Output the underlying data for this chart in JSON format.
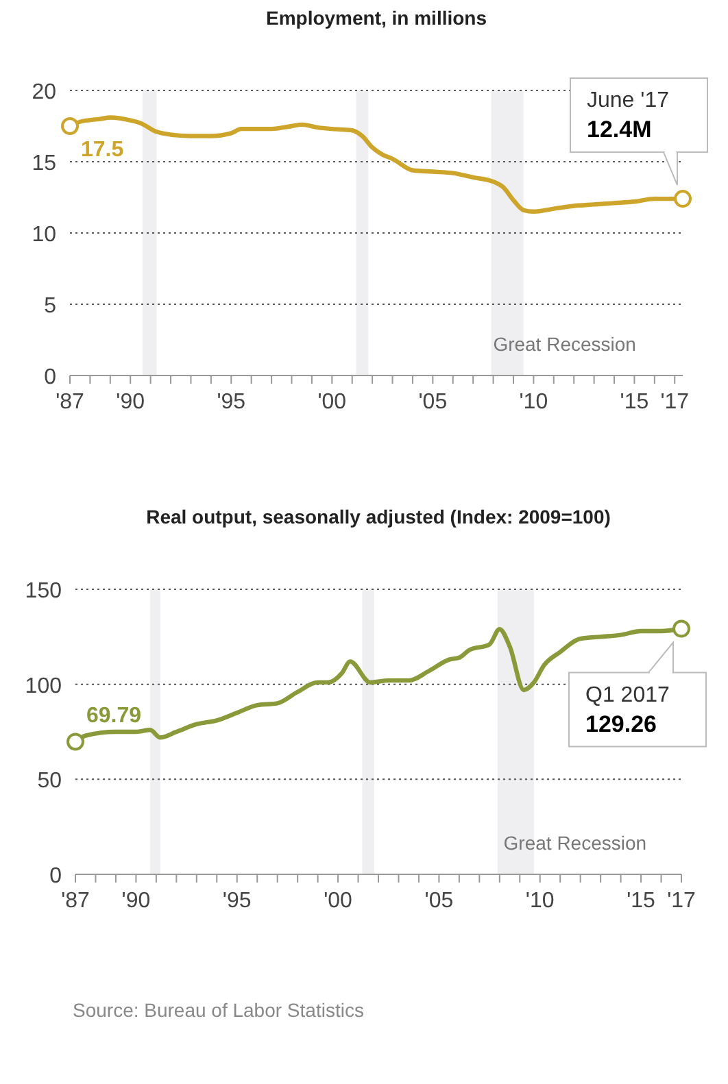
{
  "chart_data": [
    {
      "type": "line",
      "title": "Employment, in millions",
      "xlim": [
        1987,
        2017.4
      ],
      "xticks": [
        {
          "value": 1987,
          "label": "'87"
        },
        {
          "value": 1988,
          "label": null
        },
        {
          "value": 1989,
          "label": null
        },
        {
          "value": 1990,
          "label": "'90"
        },
        {
          "value": 1991,
          "label": null
        },
        {
          "value": 1992,
          "label": null
        },
        {
          "value": 1993,
          "label": null
        },
        {
          "value": 1994,
          "label": null
        },
        {
          "value": 1995,
          "label": "'95"
        },
        {
          "value": 1996,
          "label": null
        },
        {
          "value": 1997,
          "label": null
        },
        {
          "value": 1998,
          "label": null
        },
        {
          "value": 1999,
          "label": null
        },
        {
          "value": 2000,
          "label": "'00"
        },
        {
          "value": 2001,
          "label": null
        },
        {
          "value": 2002,
          "label": null
        },
        {
          "value": 2003,
          "label": null
        },
        {
          "value": 2004,
          "label": null
        },
        {
          "value": 2005,
          "label": "'05"
        },
        {
          "value": 2006,
          "label": null
        },
        {
          "value": 2007,
          "label": null
        },
        {
          "value": 2008,
          "label": null
        },
        {
          "value": 2009,
          "label": null
        },
        {
          "value": 2010,
          "label": "'10"
        },
        {
          "value": 2011,
          "label": null
        },
        {
          "value": 2012,
          "label": null
        },
        {
          "value": 2013,
          "label": null
        },
        {
          "value": 2014,
          "label": null
        },
        {
          "value": 2015,
          "label": "'15"
        },
        {
          "value": 2016,
          "label": null
        },
        {
          "value": 2017,
          "label": "'17"
        }
      ],
      "ylim": [
        0,
        20
      ],
      "yticks": [
        0,
        5,
        10,
        15,
        20
      ],
      "grid": "y",
      "marker": "none",
      "line_style": "solid",
      "series": [
        {
          "color": "#cda52b",
          "x": [
            1987,
            1987.5,
            1988.5,
            1989,
            1990,
            1990.5,
            1991.3,
            1992,
            1993,
            1994,
            1995,
            1995.5,
            1997,
            1998,
            1998.5,
            1999.3,
            2000,
            2001,
            2001.5,
            2002,
            2002.5,
            2003,
            2004,
            2005,
            2006,
            2007,
            2008,
            2008.5,
            2009,
            2009.5,
            2010,
            2011,
            2012,
            2013,
            2014,
            2015,
            2016,
            2016.7,
            2017.4
          ],
          "values": [
            17.5,
            17.8,
            18.0,
            18.1,
            17.9,
            17.7,
            17.1,
            16.9,
            16.8,
            16.8,
            17.0,
            17.3,
            17.3,
            17.5,
            17.6,
            17.4,
            17.3,
            17.2,
            16.8,
            16.0,
            15.5,
            15.2,
            14.4,
            14.3,
            14.2,
            13.9,
            13.6,
            13.2,
            12.3,
            11.6,
            11.5,
            11.7,
            11.9,
            12.0,
            12.1,
            12.2,
            12.4,
            12.4,
            12.4
          ]
        }
      ],
      "bands": [
        {
          "axis": "x",
          "from": 1990.6,
          "to": 1991.3,
          "color": "#efeff1"
        },
        {
          "axis": "x",
          "from": 2001.2,
          "to": 2001.8,
          "color": "#efeff1"
        },
        {
          "axis": "x",
          "from": 2007.9,
          "to": 2009.5,
          "label": "Great Recession",
          "color": "#efeff1"
        }
      ],
      "annotations": [
        {
          "text": "17.5",
          "x": 1987,
          "y": 17.5
        },
        "June '17",
        "12.4M"
      ]
    },
    {
      "type": "line",
      "title": "Real output, seasonally adjusted (Index: 2009=100)",
      "xlim": [
        1987,
        2017
      ],
      "xticks": [
        {
          "value": 1987,
          "label": "'87"
        },
        {
          "value": 1988,
          "label": null
        },
        {
          "value": 1989,
          "label": null
        },
        {
          "value": 1990,
          "label": "'90"
        },
        {
          "value": 1991,
          "label": null
        },
        {
          "value": 1992,
          "label": null
        },
        {
          "value": 1993,
          "label": null
        },
        {
          "value": 1994,
          "label": null
        },
        {
          "value": 1995,
          "label": "'95"
        },
        {
          "value": 1996,
          "label": null
        },
        {
          "value": 1997,
          "label": null
        },
        {
          "value": 1998,
          "label": null
        },
        {
          "value": 1999,
          "label": null
        },
        {
          "value": 2000,
          "label": "'00"
        },
        {
          "value": 2001,
          "label": null
        },
        {
          "value": 2002,
          "label": null
        },
        {
          "value": 2003,
          "label": null
        },
        {
          "value": 2004,
          "label": null
        },
        {
          "value": 2005,
          "label": "'05"
        },
        {
          "value": 2006,
          "label": null
        },
        {
          "value": 2007,
          "label": null
        },
        {
          "value": 2008,
          "label": null
        },
        {
          "value": 2009,
          "label": null
        },
        {
          "value": 2010,
          "label": "'10"
        },
        {
          "value": 2011,
          "label": null
        },
        {
          "value": 2012,
          "label": null
        },
        {
          "value": 2013,
          "label": null
        },
        {
          "value": 2014,
          "label": null
        },
        {
          "value": 2015,
          "label": "'15"
        },
        {
          "value": 2016,
          "label": null
        },
        {
          "value": 2017,
          "label": "'17"
        }
      ],
      "ylim": [
        0,
        150
      ],
      "yticks": [
        0,
        50,
        100,
        150
      ],
      "grid": "y",
      "marker": "none",
      "line_style": "solid",
      "series": [
        {
          "color": "#8a9a3a",
          "x": [
            1987,
            1987.5,
            1989,
            1990,
            1990.7,
            1991.2,
            1992,
            1993,
            1994,
            1995,
            1996,
            1997,
            1998,
            1999,
            1999.5,
            2000.2,
            2000.6,
            2001.6,
            2002.5,
            2003.5,
            2004.5,
            2005.5,
            2006,
            2006.5,
            2007.5,
            2008,
            2008.5,
            2009.2,
            2009.7,
            2010.2,
            2011,
            2012,
            2013,
            2014,
            2015,
            2016,
            2017
          ],
          "values": [
            69.79,
            73,
            75,
            75,
            76,
            72,
            75,
            79,
            81,
            85,
            89,
            90,
            96,
            101,
            101,
            106,
            112,
            101,
            102,
            102,
            107,
            113,
            114,
            118,
            121,
            129,
            120,
            97,
            101,
            110,
            117,
            124,
            125,
            126,
            128,
            128,
            129.26
          ]
        }
      ],
      "bands": [
        {
          "axis": "x",
          "from": 1990.7,
          "to": 1991.2,
          "color": "#efeff1"
        },
        {
          "axis": "x",
          "from": 2001.2,
          "to": 2001.8,
          "color": "#efeff1"
        },
        {
          "axis": "x",
          "from": 2007.9,
          "to": 2009.7,
          "label": "Great Recession",
          "color": "#efeff1"
        }
      ],
      "annotations": [
        {
          "text": "69.79",
          "x": 1987,
          "y": 69.79
        },
        "Q1 2017",
        "129.26",
        "Source: Bureau of Labor Statistics"
      ]
    }
  ]
}
